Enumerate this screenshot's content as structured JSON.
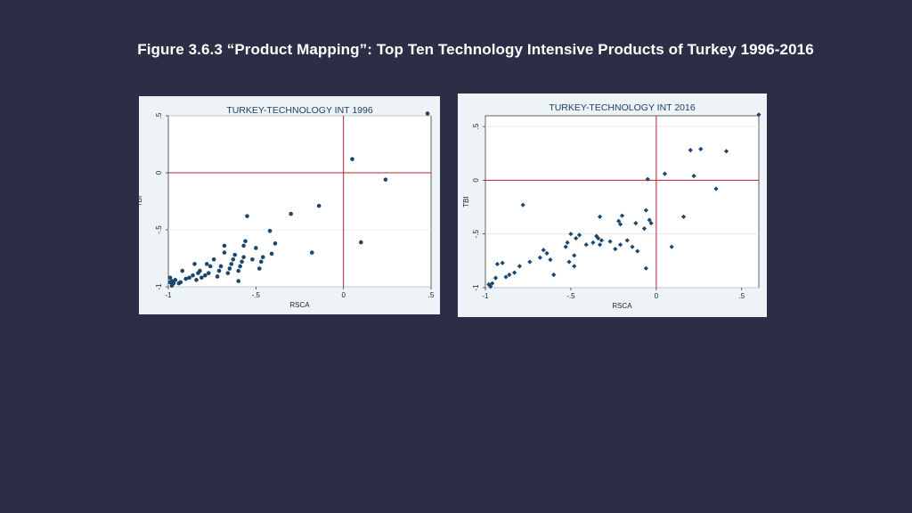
{
  "page": {
    "title": "Figure 3.6.3 “Product Mapping”: Top Ten Technology Intensive Products of Turkey 1996-2016"
  },
  "colors": {
    "background": "#2c2e45",
    "panel": "#eef3f7",
    "plot_area": "#ffffff",
    "marker": "#1a476f",
    "reference_line": "#b22234",
    "title_text": "#1e3e62"
  },
  "chart_data": [
    {
      "type": "scatter",
      "title": "TURKEY-TECHNOLOGY INT 1996",
      "xlabel": "RSCA",
      "ylabel": "TBI",
      "xlim": [
        -1,
        0.5
      ],
      "ylim": [
        -1,
        0.5
      ],
      "xticks": [
        -1,
        -0.5,
        0,
        0.5
      ],
      "xtick_labels": [
        "-1",
        "-.5",
        "0",
        ".5"
      ],
      "yticks": [
        -1,
        -0.5,
        0,
        0.5
      ],
      "ytick_labels": [
        "-1",
        "-.5",
        "0",
        ".5"
      ],
      "reference_lines": {
        "x": 0,
        "y": 0
      },
      "grid": true,
      "marker": "circle",
      "points": [
        [
          0.48,
          0.52
        ],
        [
          0.05,
          0.12
        ],
        [
          0.24,
          -0.06
        ],
        [
          0.1,
          -0.61
        ],
        [
          -0.14,
          -0.29
        ],
        [
          -0.18,
          -0.7
        ],
        [
          -0.3,
          -0.36
        ],
        [
          -0.39,
          -0.62
        ],
        [
          -0.41,
          -0.71
        ],
        [
          -0.42,
          -0.51
        ],
        [
          -0.46,
          -0.74
        ],
        [
          -0.47,
          -0.78
        ],
        [
          -0.48,
          -0.84
        ],
        [
          -0.5,
          -0.66
        ],
        [
          -0.52,
          -0.76
        ],
        [
          -0.55,
          -0.38
        ],
        [
          -0.56,
          -0.6
        ],
        [
          -0.57,
          -0.64
        ],
        [
          -0.57,
          -0.74
        ],
        [
          -0.58,
          -0.78
        ],
        [
          -0.59,
          -0.82
        ],
        [
          -0.6,
          -0.86
        ],
        [
          -0.6,
          -0.95
        ],
        [
          -0.62,
          -0.72
        ],
        [
          -0.63,
          -0.76
        ],
        [
          -0.64,
          -0.8
        ],
        [
          -0.65,
          -0.84
        ],
        [
          -0.66,
          -0.88
        ],
        [
          -0.68,
          -0.64
        ],
        [
          -0.68,
          -0.7
        ],
        [
          -0.7,
          -0.82
        ],
        [
          -0.71,
          -0.86
        ],
        [
          -0.72,
          -0.91
        ],
        [
          -0.74,
          -0.76
        ],
        [
          -0.76,
          -0.82
        ],
        [
          -0.77,
          -0.88
        ],
        [
          -0.78,
          -0.8
        ],
        [
          -0.79,
          -0.9
        ],
        [
          -0.81,
          -0.92
        ],
        [
          -0.82,
          -0.86
        ],
        [
          -0.83,
          -0.88
        ],
        [
          -0.84,
          -0.94
        ],
        [
          -0.85,
          -0.8
        ],
        [
          -0.86,
          -0.9
        ],
        [
          -0.88,
          -0.92
        ],
        [
          -0.9,
          -0.93
        ],
        [
          -0.92,
          -0.86
        ],
        [
          -0.93,
          -0.96
        ],
        [
          -0.94,
          -0.97
        ],
        [
          -0.96,
          -0.94
        ],
        [
          -0.97,
          -0.97
        ],
        [
          -0.98,
          -0.95
        ],
        [
          -0.98,
          -0.99
        ],
        [
          -0.99,
          -0.92
        ],
        [
          -0.99,
          -0.96
        ]
      ]
    },
    {
      "type": "scatter",
      "title": "TURKEY-TECHNOLOGY INT 2016",
      "xlabel": "RSCA",
      "ylabel": "TBI",
      "xlim": [
        -1,
        0.6
      ],
      "ylim": [
        -1,
        0.6
      ],
      "xticks": [
        -1,
        -0.5,
        0,
        0.5
      ],
      "xtick_labels": [
        "-1",
        "-.5",
        "0",
        ".5"
      ],
      "yticks": [
        -1,
        -0.5,
        0,
        0.5
      ],
      "ytick_labels": [
        "-1",
        "-.5",
        "0",
        ".5"
      ],
      "reference_lines": {
        "x": 0,
        "y": 0
      },
      "grid": true,
      "marker": "diamond",
      "points": [
        [
          0.6,
          0.61
        ],
        [
          0.2,
          0.28
        ],
        [
          0.26,
          0.29
        ],
        [
          0.41,
          0.27
        ],
        [
          0.05,
          0.06
        ],
        [
          0.22,
          0.04
        ],
        [
          -0.05,
          0.01
        ],
        [
          0.35,
          -0.08
        ],
        [
          -0.06,
          -0.28
        ],
        [
          0.16,
          -0.34
        ],
        [
          -0.04,
          -0.37
        ],
        [
          -0.03,
          -0.4
        ],
        [
          0.09,
          -0.62
        ],
        [
          -0.78,
          -0.23
        ],
        [
          -0.2,
          -0.33
        ],
        [
          -0.21,
          -0.41
        ],
        [
          -0.22,
          -0.38
        ],
        [
          -0.33,
          -0.34
        ],
        [
          -0.12,
          -0.4
        ],
        [
          -0.07,
          -0.45
        ],
        [
          -0.35,
          -0.52
        ],
        [
          -0.34,
          -0.54
        ],
        [
          -0.32,
          -0.56
        ],
        [
          -0.33,
          -0.6
        ],
        [
          -0.37,
          -0.58
        ],
        [
          -0.45,
          -0.51
        ],
        [
          -0.47,
          -0.54
        ],
        [
          -0.41,
          -0.6
        ],
        [
          -0.5,
          -0.5
        ],
        [
          -0.52,
          -0.58
        ],
        [
          -0.53,
          -0.62
        ],
        [
          -0.48,
          -0.7
        ],
        [
          -0.51,
          -0.76
        ],
        [
          -0.48,
          -0.8
        ],
        [
          -0.27,
          -0.57
        ],
        [
          -0.24,
          -0.64
        ],
        [
          -0.21,
          -0.6
        ],
        [
          -0.17,
          -0.56
        ],
        [
          -0.14,
          -0.62
        ],
        [
          -0.11,
          -0.66
        ],
        [
          -0.06,
          -0.82
        ],
        [
          -0.66,
          -0.65
        ],
        [
          -0.68,
          -0.72
        ],
        [
          -0.64,
          -0.68
        ],
        [
          -0.62,
          -0.74
        ],
        [
          -0.6,
          -0.88
        ],
        [
          -0.74,
          -0.76
        ],
        [
          -0.8,
          -0.8
        ],
        [
          -0.83,
          -0.86
        ],
        [
          -0.86,
          -0.88
        ],
        [
          -0.88,
          -0.9
        ],
        [
          -0.9,
          -0.77
        ],
        [
          -0.93,
          -0.78
        ],
        [
          -0.94,
          -0.91
        ],
        [
          -0.96,
          -0.96
        ],
        [
          -0.97,
          -0.99
        ],
        [
          -0.98,
          -0.97
        ]
      ]
    }
  ]
}
